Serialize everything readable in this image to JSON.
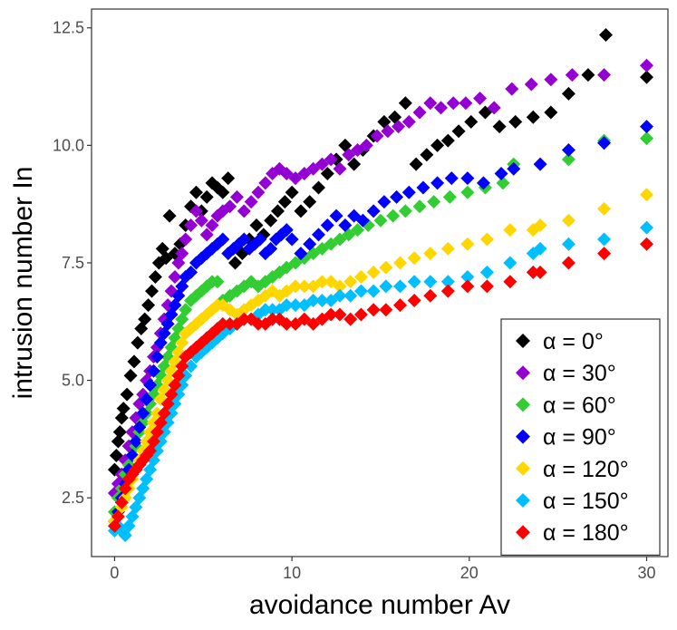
{
  "chart_data": {
    "type": "scatter",
    "xlabel": "avoidance number Av",
    "ylabel": "intrusion number In",
    "xlim": [
      -1.3,
      31.2
    ],
    "ylim": [
      1.25,
      12.9
    ],
    "x_ticks": [
      0,
      10,
      20,
      30
    ],
    "x_tick_labels": [
      "0",
      "10",
      "20",
      "30"
    ],
    "y_ticks": [
      2.5,
      5.0,
      7.5,
      10.0,
      12.5
    ],
    "y_tick_labels": [
      "2.5",
      "5.0",
      "7.5",
      "10.0",
      "12.5"
    ],
    "grid": false,
    "legend_position": "bottom-right",
    "marker": "diamond",
    "legend_labels": [
      "α = 0°",
      "α = 30°",
      "α = 60°",
      "α = 90°",
      "α = 120°",
      "α = 150°",
      "α = 180°"
    ],
    "series": [
      {
        "name": "α = 0°",
        "color": "#000000",
        "x": [
          0.0,
          0.1,
          0.2,
          0.3,
          0.4,
          0.5,
          0.7,
          0.9,
          1.1,
          1.3,
          1.5,
          1.7,
          1.9,
          2.1,
          2.3,
          2.5,
          2.7,
          2.9,
          3.1,
          3.4,
          3.7,
          4.0,
          4.3,
          4.6,
          4.9,
          5.2,
          5.5,
          5.8,
          6.1,
          6.4,
          6.8,
          7.2,
          7.6,
          8.0,
          8.4,
          8.8,
          9.2,
          9.6,
          10.0,
          10.5,
          11.0,
          11.5,
          12.0,
          12.5,
          13.0,
          13.5,
          14.0,
          14.6,
          15.2,
          15.8,
          16.4,
          17.0,
          17.6,
          18.2,
          18.8,
          19.4,
          20.1,
          20.9,
          21.7,
          22.6,
          23.6,
          24.6,
          25.6,
          26.7,
          27.7,
          30.0
        ],
        "y": [
          3.1,
          3.4,
          3.7,
          3.9,
          4.2,
          4.4,
          4.7,
          5.1,
          5.4,
          5.8,
          6.1,
          6.3,
          6.6,
          6.9,
          7.2,
          7.5,
          7.8,
          7.6,
          8.5,
          7.7,
          7.9,
          8.3,
          8.7,
          9.0,
          8.6,
          8.9,
          9.2,
          9.1,
          9.0,
          9.3,
          7.5,
          7.7,
          8.0,
          8.3,
          8.1,
          8.4,
          8.6,
          8.8,
          9.0,
          8.6,
          8.8,
          9.1,
          9.4,
          9.7,
          10.0,
          9.6,
          9.9,
          10.2,
          10.5,
          10.6,
          10.9,
          9.6,
          9.8,
          10.0,
          10.1,
          10.3,
          10.5,
          10.7,
          10.4,
          10.5,
          10.6,
          10.7,
          11.1,
          11.5,
          12.35,
          11.45
        ]
      },
      {
        "name": "α = 30°",
        "color": "#9400d3",
        "x": [
          0.0,
          0.2,
          0.4,
          0.6,
          0.8,
          1.0,
          1.2,
          1.4,
          1.6,
          1.8,
          2.0,
          2.2,
          2.4,
          2.6,
          2.8,
          3.0,
          3.2,
          3.4,
          3.6,
          3.8,
          4.0,
          4.3,
          4.6,
          4.9,
          5.2,
          5.5,
          5.8,
          6.1,
          6.5,
          6.9,
          7.3,
          7.7,
          8.1,
          8.5,
          8.9,
          9.3,
          9.7,
          10.2,
          10.7,
          11.2,
          11.7,
          12.2,
          12.7,
          13.2,
          13.7,
          14.2,
          14.8,
          15.4,
          16.0,
          16.6,
          17.2,
          17.8,
          18.4,
          19.1,
          19.8,
          20.6,
          21.4,
          22.4,
          23.5,
          24.6,
          25.8,
          27.6,
          30.0
        ],
        "y": [
          2.6,
          2.8,
          3.0,
          3.3,
          3.6,
          3.9,
          4.2,
          4.5,
          4.7,
          5.0,
          5.2,
          5.5,
          5.7,
          6.0,
          6.3,
          6.6,
          6.9,
          7.2,
          7.5,
          7.7,
          8.0,
          8.3,
          8.6,
          8.4,
          8.1,
          8.3,
          8.5,
          8.6,
          8.7,
          8.9,
          8.6,
          8.8,
          9.0,
          9.2,
          9.4,
          9.5,
          9.4,
          9.3,
          9.4,
          9.5,
          9.6,
          9.7,
          9.5,
          9.8,
          9.9,
          10.0,
          10.2,
          10.3,
          10.4,
          10.5,
          10.7,
          10.9,
          10.8,
          10.9,
          10.9,
          11.0,
          10.8,
          11.2,
          11.3,
          11.4,
          11.5,
          11.5,
          11.7
        ]
      },
      {
        "name": "α = 60°",
        "color": "#32cd32",
        "x": [
          0.0,
          0.2,
          0.4,
          0.6,
          0.8,
          1.0,
          1.2,
          1.4,
          1.6,
          1.8,
          2.0,
          2.2,
          2.4,
          2.6,
          2.8,
          3.0,
          3.2,
          3.4,
          3.6,
          3.8,
          4.0,
          4.3,
          4.6,
          4.9,
          5.2,
          5.5,
          5.8,
          6.1,
          6.5,
          6.9,
          7.3,
          7.7,
          8.1,
          8.5,
          8.9,
          9.3,
          9.7,
          10.2,
          10.7,
          11.2,
          11.7,
          12.2,
          12.7,
          13.2,
          13.7,
          14.3,
          15.0,
          15.7,
          16.4,
          17.2,
          18.0,
          18.9,
          19.9,
          20.9,
          21.9,
          22.5,
          25.6,
          27.6,
          30.0
        ],
        "y": [
          2.2,
          2.5,
          2.7,
          3.0,
          3.2,
          3.4,
          3.6,
          3.9,
          4.1,
          4.3,
          4.5,
          4.7,
          4.9,
          5.1,
          5.3,
          5.5,
          5.7,
          5.9,
          6.1,
          6.3,
          6.5,
          6.7,
          6.8,
          6.9,
          7.0,
          7.1,
          7.1,
          6.7,
          6.8,
          6.9,
          7.0,
          7.1,
          7.0,
          7.1,
          7.2,
          7.3,
          7.4,
          7.5,
          7.6,
          7.7,
          7.8,
          7.9,
          8.0,
          8.1,
          8.2,
          8.3,
          8.4,
          8.5,
          8.6,
          8.7,
          8.8,
          8.9,
          9.0,
          9.1,
          9.2,
          9.6,
          9.7,
          10.1,
          10.15
        ]
      },
      {
        "name": "α = 90°",
        "color": "#0000ff",
        "x": [
          0.0,
          0.2,
          0.4,
          0.6,
          0.8,
          1.0,
          1.2,
          1.4,
          1.6,
          1.8,
          2.0,
          2.2,
          2.4,
          2.6,
          2.8,
          3.0,
          3.2,
          3.4,
          3.6,
          3.8,
          4.0,
          4.3,
          4.6,
          4.9,
          5.2,
          5.5,
          5.8,
          6.1,
          6.4,
          6.7,
          7.0,
          7.3,
          7.6,
          7.9,
          8.2,
          8.5,
          8.8,
          9.1,
          9.4,
          9.7,
          10.0,
          10.5,
          11.0,
          11.5,
          12.0,
          12.5,
          13.0,
          13.5,
          14.0,
          14.6,
          15.2,
          15.9,
          16.6,
          17.4,
          18.2,
          19.0,
          19.9,
          20.8,
          21.8,
          22.5,
          24.0,
          25.6,
          27.6,
          30.0
        ],
        "y": [
          2.0,
          2.2,
          2.5,
          2.8,
          3.1,
          3.4,
          3.7,
          4.0,
          4.3,
          4.6,
          4.9,
          5.2,
          5.5,
          5.8,
          6.0,
          6.2,
          6.4,
          6.6,
          6.8,
          7.0,
          7.2,
          7.3,
          7.5,
          7.6,
          7.7,
          7.8,
          7.9,
          8.0,
          7.7,
          7.8,
          7.9,
          8.0,
          7.8,
          7.9,
          8.0,
          7.7,
          7.8,
          8.0,
          8.1,
          8.2,
          8.0,
          7.7,
          7.9,
          8.1,
          8.3,
          8.5,
          8.3,
          8.5,
          8.4,
          8.6,
          8.8,
          8.9,
          9.0,
          9.1,
          9.2,
          9.3,
          9.3,
          9.2,
          9.4,
          9.5,
          9.6,
          9.9,
          10.05,
          10.4
        ]
      },
      {
        "name": "α = 120°",
        "color": "#ffd700",
        "x": [
          0.0,
          0.2,
          0.4,
          0.6,
          0.8,
          1.0,
          1.2,
          1.4,
          1.6,
          1.8,
          2.0,
          2.2,
          2.4,
          2.6,
          2.8,
          3.0,
          3.2,
          3.4,
          3.6,
          3.8,
          4.0,
          4.3,
          4.6,
          4.9,
          5.2,
          5.5,
          5.8,
          6.1,
          6.5,
          6.9,
          7.3,
          7.7,
          8.1,
          8.5,
          8.9,
          9.3,
          9.7,
          10.2,
          10.7,
          11.2,
          11.7,
          12.2,
          12.7,
          13.3,
          13.9,
          14.6,
          15.3,
          16.1,
          16.9,
          17.8,
          18.8,
          19.9,
          21.0,
          22.3,
          23.6,
          24.0,
          25.6,
          27.6,
          30.0
        ],
        "y": [
          2.0,
          2.1,
          2.3,
          2.5,
          2.7,
          2.9,
          3.1,
          3.3,
          3.5,
          3.7,
          3.9,
          4.1,
          4.3,
          4.6,
          4.8,
          5.0,
          5.2,
          5.4,
          5.6,
          5.8,
          6.0,
          6.1,
          6.2,
          6.3,
          6.4,
          6.5,
          6.6,
          6.6,
          6.5,
          6.4,
          6.5,
          6.6,
          6.7,
          6.8,
          6.9,
          6.8,
          6.9,
          7.0,
          7.0,
          7.0,
          7.1,
          7.1,
          7.0,
          7.1,
          7.2,
          7.3,
          7.4,
          7.5,
          7.6,
          7.7,
          7.8,
          7.9,
          8.0,
          8.2,
          8.2,
          8.3,
          8.4,
          8.65,
          8.95
        ]
      },
      {
        "name": "α = 150°",
        "color": "#00bfff",
        "x": [
          0.0,
          0.2,
          0.4,
          0.6,
          0.8,
          1.0,
          1.2,
          1.4,
          1.6,
          1.8,
          2.0,
          2.2,
          2.4,
          2.6,
          2.8,
          3.0,
          3.2,
          3.4,
          3.6,
          3.8,
          4.0,
          4.3,
          4.6,
          4.9,
          5.2,
          5.5,
          5.8,
          6.1,
          6.5,
          6.9,
          7.3,
          7.7,
          8.1,
          8.5,
          8.9,
          9.3,
          9.7,
          10.2,
          10.7,
          11.2,
          11.7,
          12.2,
          12.7,
          13.3,
          13.9,
          14.6,
          15.3,
          16.1,
          16.9,
          17.8,
          18.8,
          19.9,
          21.0,
          22.3,
          23.6,
          24.0,
          25.6,
          27.6,
          30.0
        ],
        "y": [
          1.8,
          1.9,
          1.8,
          1.7,
          1.9,
          2.1,
          2.3,
          2.5,
          2.7,
          2.9,
          3.1,
          3.3,
          3.5,
          3.7,
          3.9,
          4.1,
          4.3,
          4.5,
          4.7,
          4.9,
          5.1,
          5.3,
          5.5,
          5.6,
          5.7,
          5.8,
          5.9,
          6.0,
          6.1,
          6.2,
          6.3,
          6.3,
          6.4,
          6.5,
          6.5,
          6.5,
          6.6,
          6.6,
          6.6,
          6.7,
          6.7,
          6.7,
          6.8,
          6.8,
          6.9,
          6.9,
          7.0,
          7.0,
          7.1,
          7.1,
          7.1,
          7.2,
          7.3,
          7.5,
          7.7,
          7.8,
          7.9,
          8.0,
          8.25
        ]
      },
      {
        "name": "α = 180°",
        "color": "#ff0000",
        "x": [
          0.0,
          0.2,
          0.4,
          0.6,
          0.8,
          1.0,
          1.2,
          1.4,
          1.6,
          1.8,
          2.0,
          2.2,
          2.4,
          2.6,
          2.8,
          3.0,
          3.2,
          3.4,
          3.6,
          3.8,
          4.0,
          4.3,
          4.6,
          4.9,
          5.2,
          5.5,
          5.8,
          6.1,
          6.5,
          6.9,
          7.3,
          7.7,
          8.1,
          8.5,
          8.9,
          9.3,
          9.7,
          10.2,
          10.7,
          11.2,
          11.7,
          12.2,
          12.7,
          13.3,
          13.9,
          14.6,
          15.3,
          16.1,
          16.9,
          17.8,
          18.8,
          19.9,
          21.0,
          22.3,
          23.6,
          24.0,
          25.6,
          27.6,
          30.0
        ],
        "y": [
          1.9,
          2.1,
          2.4,
          2.7,
          2.9,
          3.0,
          3.1,
          3.2,
          3.3,
          3.4,
          3.5,
          3.7,
          3.9,
          4.1,
          4.3,
          4.5,
          4.7,
          4.9,
          5.1,
          5.3,
          5.5,
          5.6,
          5.7,
          5.8,
          5.9,
          6.0,
          6.1,
          6.2,
          6.2,
          6.2,
          6.3,
          6.3,
          6.2,
          6.2,
          6.3,
          6.3,
          6.2,
          6.2,
          6.3,
          6.2,
          6.3,
          6.4,
          6.4,
          6.3,
          6.4,
          6.5,
          6.5,
          6.6,
          6.7,
          6.8,
          6.9,
          7.0,
          7.0,
          7.1,
          7.3,
          7.3,
          7.5,
          7.7,
          7.9
        ]
      }
    ]
  }
}
